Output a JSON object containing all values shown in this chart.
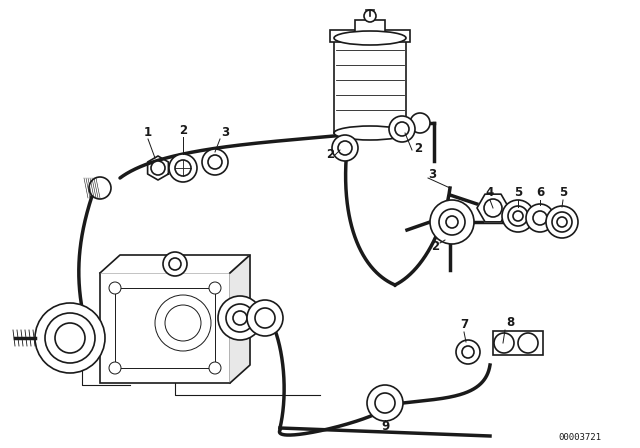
{
  "bg_color": "#ffffff",
  "line_color": "#1a1a1a",
  "fig_width": 6.4,
  "fig_height": 4.48,
  "dpi": 100,
  "part_number": "00003721",
  "title_fontsize": 7,
  "label_fontsize": 8.5
}
